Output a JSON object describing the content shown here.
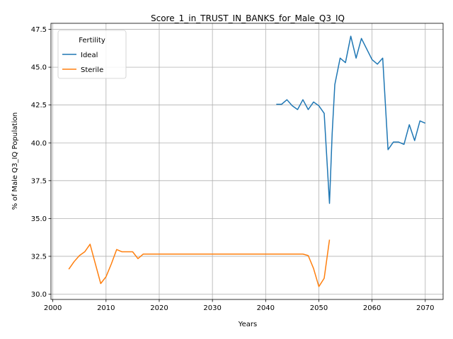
{
  "chart_data": {
    "type": "line",
    "title": "Score_1_in_TRUST_IN_BANKS_for_Male_Q3_IQ",
    "xlabel": "Years",
    "ylabel": "% of Male Q3_IQ Population",
    "xlim": [
      1999.65,
      2073.35
    ],
    "ylim": [
      29.65,
      47.9
    ],
    "xticks": [
      2000,
      2010,
      2020,
      2030,
      2040,
      2050,
      2060,
      2070
    ],
    "xtick_labels": [
      "2000",
      "2010",
      "2020",
      "2030",
      "2040",
      "2050",
      "2060",
      "2070"
    ],
    "yticks": [
      30.0,
      32.5,
      35.0,
      37.5,
      40.0,
      42.5,
      45.0,
      47.5
    ],
    "ytick_labels": [
      "30.0",
      "32.5",
      "35.0",
      "37.5",
      "40.0",
      "42.5",
      "45.0",
      "47.5"
    ],
    "grid": true,
    "legend": {
      "title": "Fertility",
      "placement": "upper-left"
    },
    "series": [
      {
        "name": "Ideal",
        "color": "#1f77b4",
        "x": [
          2042,
          2043,
          2044,
          2045,
          2046,
          2047,
          2048,
          2049,
          2050,
          2051,
          2052,
          2052.5,
          2053,
          2054,
          2055,
          2056,
          2057,
          2058,
          2059,
          2060,
          2061,
          2062,
          2063,
          2064,
          2065,
          2066,
          2067,
          2068,
          2069,
          2070
        ],
        "y": [
          42.55,
          42.55,
          42.85,
          42.45,
          42.2,
          42.85,
          42.2,
          42.7,
          42.45,
          41.95,
          36.0,
          40.6,
          43.85,
          45.6,
          45.3,
          47.05,
          45.6,
          46.9,
          46.2,
          45.5,
          45.2,
          45.6,
          39.55,
          40.05,
          40.05,
          39.9,
          41.2,
          40.15,
          41.45,
          41.3
        ]
      },
      {
        "name": "Sterile",
        "color": "#ff7f0e",
        "x": [
          2003,
          2004,
          2005,
          2006,
          2007,
          2008,
          2009,
          2010,
          2011,
          2012,
          2013,
          2014,
          2015,
          2016,
          2017,
          2018,
          2019,
          2020,
          2025,
          2030,
          2035,
          2040,
          2045,
          2047,
          2048,
          2049,
          2050,
          2051,
          2052
        ],
        "y": [
          31.65,
          32.15,
          32.55,
          32.8,
          33.3,
          32.0,
          30.7,
          31.15,
          32.0,
          32.95,
          32.8,
          32.8,
          32.8,
          32.35,
          32.65,
          32.65,
          32.65,
          32.65,
          32.65,
          32.65,
          32.65,
          32.65,
          32.65,
          32.65,
          32.55,
          31.7,
          30.5,
          31.05,
          33.6
        ]
      }
    ]
  }
}
